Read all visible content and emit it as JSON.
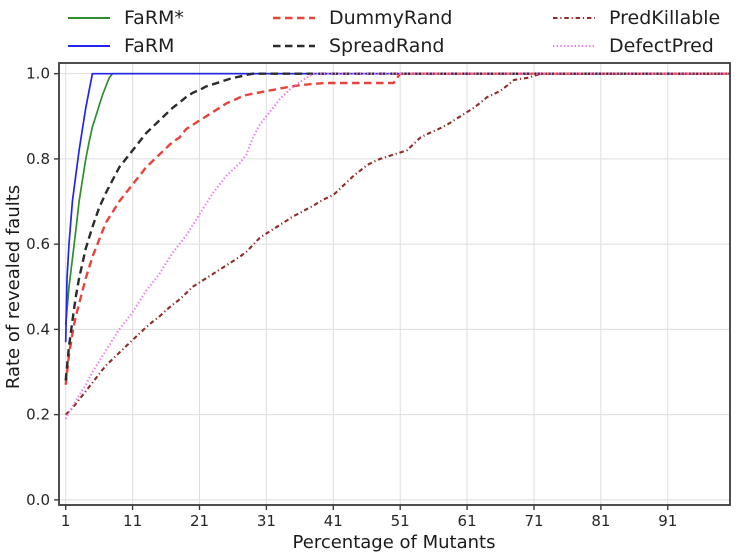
{
  "chart_data": {
    "type": "line",
    "title": "",
    "xlabel": "Percentage of Mutants",
    "ylabel": "Rate of revealed faults",
    "xlim": [
      0,
      100.3
    ],
    "ylim": [
      -0.012,
      1.025
    ],
    "x_ticks": [
      1,
      11,
      21,
      31,
      41,
      51,
      61,
      71,
      81,
      91
    ],
    "y_ticks": [
      0.0,
      0.2,
      0.4,
      0.6,
      0.8,
      1.0
    ],
    "y_tick_labels": [
      "0.0",
      "0.2",
      "0.4",
      "0.6",
      "0.8",
      "1.0"
    ],
    "grid": true,
    "grid_color": "#dedede",
    "spine_color": "#3b3b3b",
    "legend_position": "top",
    "legend_columns": [
      [
        "FaRM*",
        "FaRM"
      ],
      [
        "DummyRand",
        "SpreadRand"
      ],
      [
        "PredKillable",
        "DefectPred"
      ]
    ],
    "series": [
      {
        "name": "FaRM*",
        "color": "#2c8f2c",
        "dash": "solid",
        "width": 1.7,
        "points": [
          [
            1,
            0.41
          ],
          [
            1.5,
            0.5
          ],
          [
            2,
            0.565
          ],
          [
            2.5,
            0.63
          ],
          [
            3,
            0.7
          ],
          [
            3.5,
            0.75
          ],
          [
            4,
            0.8
          ],
          [
            4.5,
            0.84
          ],
          [
            5,
            0.875
          ],
          [
            5.5,
            0.9
          ],
          [
            6,
            0.925
          ],
          [
            6.5,
            0.95
          ],
          [
            7,
            0.97
          ],
          [
            7.5,
            0.99
          ],
          [
            8,
            1.0
          ],
          [
            100.3,
            1.0
          ]
        ]
      },
      {
        "name": "FaRM",
        "color": "#2424f0",
        "dash": "solid",
        "width": 1.7,
        "points": [
          [
            1,
            0.37
          ],
          [
            1.2,
            0.52
          ],
          [
            1.5,
            0.6
          ],
          [
            2,
            0.7
          ],
          [
            2.5,
            0.76
          ],
          [
            3,
            0.82
          ],
          [
            3.5,
            0.87
          ],
          [
            4,
            0.92
          ],
          [
            4.5,
            0.96
          ],
          [
            5,
            1.0
          ],
          [
            100.3,
            1.0
          ]
        ]
      },
      {
        "name": "DummyRand",
        "color": "#e8433a",
        "dash": "dashed",
        "width": 2.4,
        "points": [
          [
            1,
            0.27
          ],
          [
            1.5,
            0.34
          ],
          [
            2,
            0.39
          ],
          [
            2.5,
            0.43
          ],
          [
            3,
            0.46
          ],
          [
            4,
            0.52
          ],
          [
            5,
            0.57
          ],
          [
            6,
            0.61
          ],
          [
            7,
            0.65
          ],
          [
            8,
            0.675
          ],
          [
            9,
            0.7
          ],
          [
            10,
            0.72
          ],
          [
            11,
            0.74
          ],
          [
            12,
            0.76
          ],
          [
            13,
            0.78
          ],
          [
            14,
            0.795
          ],
          [
            15,
            0.81
          ],
          [
            16,
            0.825
          ],
          [
            17,
            0.84
          ],
          [
            18,
            0.85
          ],
          [
            19,
            0.87
          ],
          [
            20,
            0.88
          ],
          [
            21,
            0.89
          ],
          [
            22,
            0.9
          ],
          [
            23,
            0.91
          ],
          [
            24,
            0.92
          ],
          [
            25,
            0.93
          ],
          [
            26,
            0.937
          ],
          [
            27,
            0.944
          ],
          [
            28,
            0.95
          ],
          [
            30,
            0.956
          ],
          [
            32,
            0.962
          ],
          [
            34,
            0.968
          ],
          [
            36,
            0.973
          ],
          [
            38,
            0.976
          ],
          [
            40,
            0.978
          ],
          [
            50,
            0.978
          ],
          [
            51,
            1.0
          ],
          [
            100.3,
            1.0
          ]
        ]
      },
      {
        "name": "SpreadRand",
        "color": "#2b2b2b",
        "dash": "dashed",
        "width": 2.4,
        "points": [
          [
            1,
            0.28
          ],
          [
            1.5,
            0.36
          ],
          [
            2,
            0.42
          ],
          [
            2.5,
            0.475
          ],
          [
            3,
            0.52
          ],
          [
            4,
            0.59
          ],
          [
            5,
            0.64
          ],
          [
            6,
            0.685
          ],
          [
            7,
            0.72
          ],
          [
            8,
            0.75
          ],
          [
            9,
            0.78
          ],
          [
            10,
            0.8
          ],
          [
            11,
            0.82
          ],
          [
            12,
            0.84
          ],
          [
            13,
            0.86
          ],
          [
            14,
            0.875
          ],
          [
            15,
            0.89
          ],
          [
            16,
            0.905
          ],
          [
            17,
            0.92
          ],
          [
            18,
            0.932
          ],
          [
            19,
            0.945
          ],
          [
            20,
            0.955
          ],
          [
            21,
            0.962
          ],
          [
            22,
            0.97
          ],
          [
            23,
            0.975
          ],
          [
            24,
            0.98
          ],
          [
            25,
            0.985
          ],
          [
            26,
            0.99
          ],
          [
            27,
            0.993
          ],
          [
            28,
            0.997
          ],
          [
            29,
            1.0
          ],
          [
            100.3,
            1.0
          ]
        ]
      },
      {
        "name": "PredKillable",
        "color": "#8e2c28",
        "dash": "dashdot",
        "width": 2.1,
        "points": [
          [
            1,
            0.2
          ],
          [
            2,
            0.215
          ],
          [
            3,
            0.235
          ],
          [
            4,
            0.255
          ],
          [
            5,
            0.275
          ],
          [
            6,
            0.295
          ],
          [
            7,
            0.315
          ],
          [
            8,
            0.33
          ],
          [
            9,
            0.345
          ],
          [
            10,
            0.36
          ],
          [
            11,
            0.375
          ],
          [
            12,
            0.39
          ],
          [
            13,
            0.405
          ],
          [
            14,
            0.418
          ],
          [
            15,
            0.43
          ],
          [
            16,
            0.445
          ],
          [
            17,
            0.458
          ],
          [
            18,
            0.47
          ],
          [
            19,
            0.485
          ],
          [
            20,
            0.5
          ],
          [
            21,
            0.51
          ],
          [
            22,
            0.52
          ],
          [
            23,
            0.53
          ],
          [
            24,
            0.54
          ],
          [
            25,
            0.55
          ],
          [
            26,
            0.56
          ],
          [
            27,
            0.57
          ],
          [
            28,
            0.582
          ],
          [
            29,
            0.598
          ],
          [
            30,
            0.615
          ],
          [
            31,
            0.625
          ],
          [
            32,
            0.635
          ],
          [
            33,
            0.645
          ],
          [
            34,
            0.655
          ],
          [
            35,
            0.665
          ],
          [
            36,
            0.673
          ],
          [
            37,
            0.682
          ],
          [
            38,
            0.69
          ],
          [
            39,
            0.7
          ],
          [
            40,
            0.708
          ],
          [
            41,
            0.715
          ],
          [
            42,
            0.73
          ],
          [
            43,
            0.745
          ],
          [
            44,
            0.76
          ],
          [
            45,
            0.772
          ],
          [
            46,
            0.785
          ],
          [
            47,
            0.793
          ],
          [
            48,
            0.8
          ],
          [
            49,
            0.805
          ],
          [
            50,
            0.81
          ],
          [
            51,
            0.815
          ],
          [
            52,
            0.82
          ],
          [
            53,
            0.835
          ],
          [
            54,
            0.85
          ],
          [
            55,
            0.858
          ],
          [
            56,
            0.865
          ],
          [
            57,
            0.872
          ],
          [
            58,
            0.88
          ],
          [
            59,
            0.89
          ],
          [
            60,
            0.9
          ],
          [
            61,
            0.91
          ],
          [
            62,
            0.92
          ],
          [
            63,
            0.932
          ],
          [
            64,
            0.945
          ],
          [
            65,
            0.952
          ],
          [
            66,
            0.96
          ],
          [
            67,
            0.972
          ],
          [
            68,
            0.985
          ],
          [
            69,
            0.988
          ],
          [
            70,
            0.99
          ],
          [
            71,
            0.995
          ],
          [
            72,
            1.0
          ],
          [
            100.3,
            1.0
          ]
        ]
      },
      {
        "name": "DefectPred",
        "color": "#ee7bee",
        "dash": "dotted",
        "width": 2.1,
        "points": [
          [
            1,
            0.19
          ],
          [
            2,
            0.22
          ],
          [
            3,
            0.245
          ],
          [
            4,
            0.27
          ],
          [
            5,
            0.3
          ],
          [
            6,
            0.325
          ],
          [
            7,
            0.35
          ],
          [
            8,
            0.375
          ],
          [
            9,
            0.4
          ],
          [
            10,
            0.42
          ],
          [
            11,
            0.44
          ],
          [
            12,
            0.465
          ],
          [
            13,
            0.49
          ],
          [
            14,
            0.51
          ],
          [
            15,
            0.53
          ],
          [
            16,
            0.555
          ],
          [
            17,
            0.58
          ],
          [
            18,
            0.6
          ],
          [
            19,
            0.62
          ],
          [
            20,
            0.645
          ],
          [
            21,
            0.67
          ],
          [
            22,
            0.695
          ],
          [
            23,
            0.72
          ],
          [
            24,
            0.74
          ],
          [
            25,
            0.76
          ],
          [
            26,
            0.775
          ],
          [
            27,
            0.79
          ],
          [
            28,
            0.81
          ],
          [
            29,
            0.85
          ],
          [
            30,
            0.88
          ],
          [
            31,
            0.9
          ],
          [
            32,
            0.92
          ],
          [
            33,
            0.94
          ],
          [
            34,
            0.955
          ],
          [
            35,
            0.97
          ],
          [
            36,
            0.98
          ],
          [
            37,
            0.99
          ],
          [
            38,
            1.0
          ],
          [
            100.3,
            1.0
          ]
        ]
      }
    ]
  }
}
